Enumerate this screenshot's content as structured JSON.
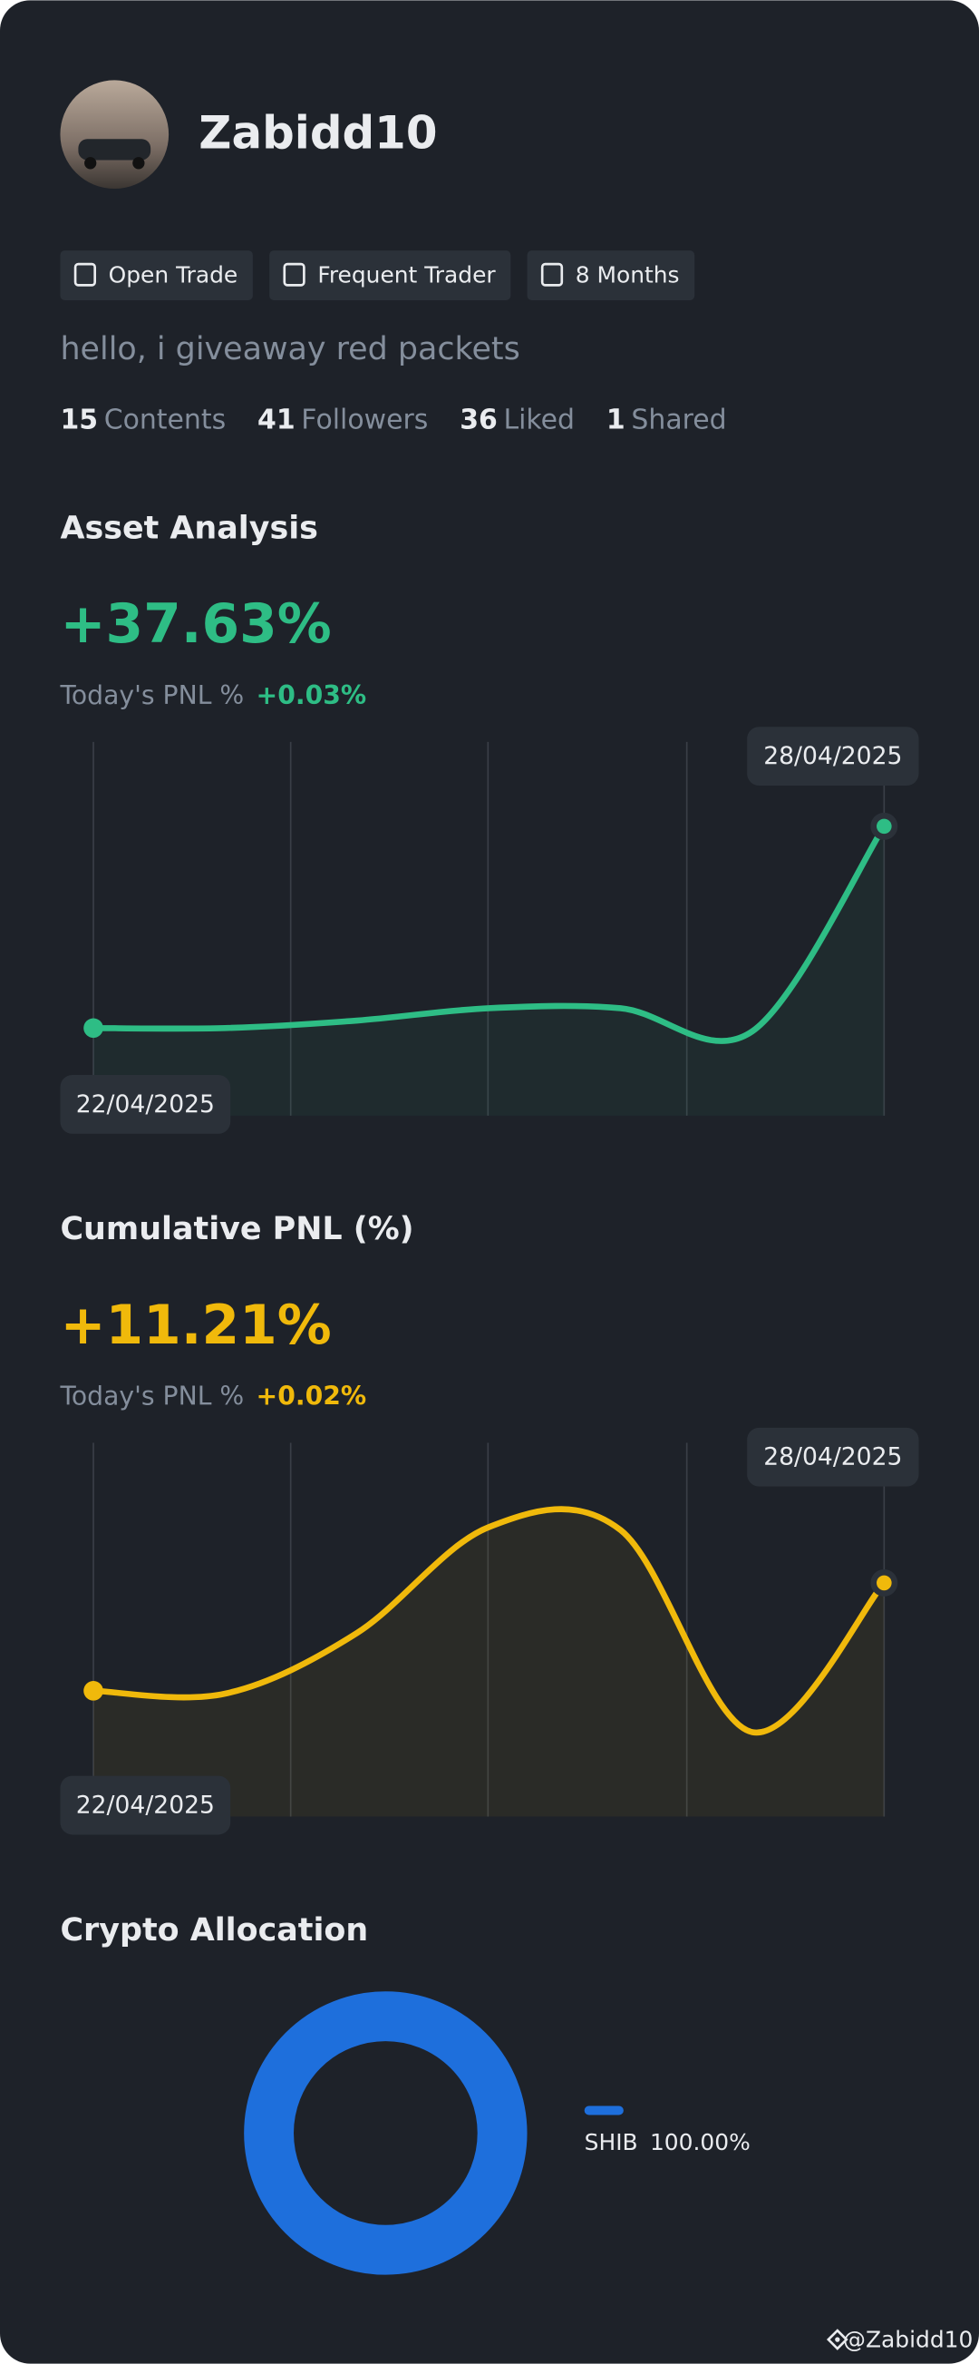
{
  "profile": {
    "name": "Zabidd10",
    "tags": [
      "Open Trade",
      "Frequent Trader",
      "8 Months"
    ],
    "bio": "hello, i giveaway red packets",
    "stats": [
      {
        "value": 15,
        "label": "Contents"
      },
      {
        "value": 41,
        "label": "Followers"
      },
      {
        "value": 36,
        "label": "Liked"
      },
      {
        "value": 1,
        "label": "Shared"
      }
    ]
  },
  "chart_data": [
    {
      "type": "line",
      "title": "Asset Analysis",
      "headline": "+37.63%",
      "subtitle": "Today's PNL %",
      "subtitle_value": "+0.03%",
      "categories": [
        "22/04/2025",
        null,
        null,
        null,
        null,
        null,
        "28/04/2025"
      ],
      "series": [
        {
          "color": "#2ebd85",
          "values": [
            0,
            0,
            1.4,
            3.7,
            3.7,
            -0.6,
            37.63
          ]
        }
      ]
    },
    {
      "type": "line",
      "title": "Cumulative PNL (%)",
      "headline": "+11.21%",
      "subtitle": "Today's PNL %",
      "subtitle_value": "+0.02%",
      "categories": [
        "22/04/2025",
        null,
        null,
        null,
        null,
        null,
        "28/04/2025"
      ],
      "series": [
        {
          "color": "#f0b90b",
          "values": [
            0,
            -0.3,
            6.0,
            17.0,
            16.7,
            -4.3,
            11.21
          ]
        }
      ]
    },
    {
      "type": "pie",
      "title": "Crypto Allocation",
      "categories": [
        "SHIB"
      ],
      "values": [
        100
      ],
      "value_labels": [
        "100.00%"
      ],
      "colors": [
        "#1e6fdc"
      ]
    }
  ],
  "watermark": "@Zabidd10"
}
